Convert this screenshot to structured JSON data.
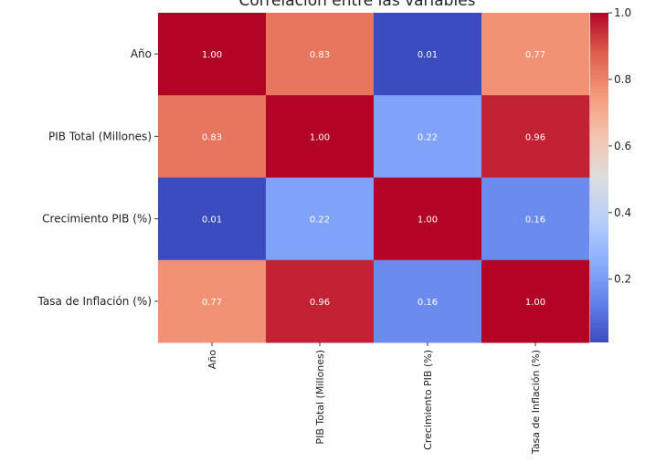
{
  "chart_data": {
    "type": "heatmap",
    "title": "Correlación entre las variables",
    "rows": [
      "Año",
      "PIB Total (Millones)",
      "Crecimiento PIB (%)",
      "Tasa de Inflación (%)"
    ],
    "columns": [
      "Año",
      "PIB Total (Millones)",
      "Crecimiento PIB (%)",
      "Tasa de Inflación (%)"
    ],
    "values": [
      [
        1.0,
        0.83,
        0.01,
        0.77
      ],
      [
        0.83,
        1.0,
        0.22,
        0.96
      ],
      [
        0.01,
        0.22,
        1.0,
        0.16
      ],
      [
        0.77,
        0.96,
        0.16,
        1.0
      ]
    ],
    "cell_labels": [
      [
        "1.00",
        "0.83",
        "0.01",
        "0.77"
      ],
      [
        "0.83",
        "1.00",
        "0.22",
        "0.96"
      ],
      [
        "0.01",
        "0.22",
        "1.00",
        "0.16"
      ],
      [
        "0.77",
        "0.96",
        "0.16",
        "1.00"
      ]
    ],
    "colormap": "coolwarm",
    "color_range": [
      0.01,
      1.0
    ],
    "colorbar_ticks": [
      {
        "value": 0.2,
        "label": "0.2"
      },
      {
        "value": 0.4,
        "label": "0.4"
      },
      {
        "value": 0.6,
        "label": "0.6"
      },
      {
        "value": 0.8,
        "label": "0.8"
      },
      {
        "value": 1.0,
        "label": "1.0"
      }
    ],
    "colors": {
      "label_text": "#ffffff",
      "axis_text": "#222222"
    }
  }
}
